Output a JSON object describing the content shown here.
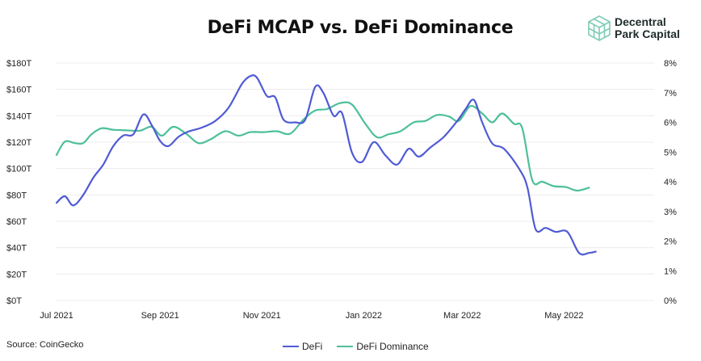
{
  "header": {
    "title": "DeFi MCAP vs. DeFi Dominance",
    "brand_line1": "Decentral",
    "brand_line2": "Park Capital",
    "brand_icon": "cube-logo-icon"
  },
  "footer": {
    "source": "Source: CoinGecko"
  },
  "colors": {
    "defi": "#4F5BD5",
    "dominance": "#4DBF9B",
    "grid": "#ECECEC",
    "logo": "#7FCBB5"
  },
  "chart_data": {
    "type": "line",
    "title": "DeFi MCAP vs. DeFi Dominance",
    "xlabel": "",
    "ylabel": "",
    "x_range": [
      "2021-07-01",
      "2022-06-24"
    ],
    "x_ticks": [
      {
        "date": "2021-07-01",
        "label": "Jul 2021"
      },
      {
        "date": "2021-09-01",
        "label": "Sep 2021"
      },
      {
        "date": "2021-11-01",
        "label": "Nov 2021"
      },
      {
        "date": "2022-01-01",
        "label": "Jan 2022"
      },
      {
        "date": "2022-03-01",
        "label": "Mar 2022"
      },
      {
        "date": "2022-05-01",
        "label": "May 2022"
      }
    ],
    "y_left": {
      "min": 0,
      "max": 180,
      "ticks": [
        "$0T",
        "$20T",
        "$40T",
        "$60T",
        "$80T",
        "$100T",
        "$120T",
        "$140T",
        "$160T",
        "$180T"
      ]
    },
    "y_right": {
      "min": 0,
      "max": 8,
      "ticks": [
        "0%",
        "1%",
        "2%",
        "3%",
        "4%",
        "5%",
        "6%",
        "7%",
        "8%"
      ]
    },
    "grid": true,
    "legend_position": "bottom",
    "series": [
      {
        "name": "DeFi",
        "axis": "left",
        "points": [
          [
            "2021-07-01",
            74
          ],
          [
            "2021-07-06",
            79
          ],
          [
            "2021-07-11",
            72
          ],
          [
            "2021-07-17",
            80
          ],
          [
            "2021-07-23",
            93
          ],
          [
            "2021-07-29",
            103
          ],
          [
            "2021-08-04",
            117
          ],
          [
            "2021-08-10",
            125
          ],
          [
            "2021-08-16",
            126
          ],
          [
            "2021-08-22",
            141
          ],
          [
            "2021-08-27",
            133
          ],
          [
            "2021-09-01",
            121
          ],
          [
            "2021-09-06",
            117
          ],
          [
            "2021-09-12",
            124
          ],
          [
            "2021-09-18",
            128
          ],
          [
            "2021-09-26",
            131
          ],
          [
            "2021-10-04",
            136
          ],
          [
            "2021-10-12",
            146
          ],
          [
            "2021-10-20",
            164
          ],
          [
            "2021-10-25",
            170
          ],
          [
            "2021-10-29",
            169
          ],
          [
            "2021-11-04",
            155
          ],
          [
            "2021-11-09",
            154
          ],
          [
            "2021-11-14",
            137
          ],
          [
            "2021-11-21",
            135
          ],
          [
            "2021-11-27",
            137
          ],
          [
            "2021-12-03",
            162
          ],
          [
            "2021-12-08",
            157
          ],
          [
            "2021-12-14",
            140
          ],
          [
            "2021-12-19",
            142
          ],
          [
            "2021-12-25",
            112
          ],
          [
            "2021-12-31",
            105
          ],
          [
            "2022-01-07",
            120
          ],
          [
            "2022-01-14",
            110
          ],
          [
            "2022-01-21",
            103
          ],
          [
            "2022-01-28",
            115
          ],
          [
            "2022-02-03",
            109
          ],
          [
            "2022-02-10",
            116
          ],
          [
            "2022-02-18",
            124
          ],
          [
            "2022-02-26",
            136
          ],
          [
            "2022-03-03",
            145
          ],
          [
            "2022-03-08",
            152
          ],
          [
            "2022-03-13",
            135
          ],
          [
            "2022-03-19",
            119
          ],
          [
            "2022-03-26",
            115
          ],
          [
            "2022-04-04",
            100
          ],
          [
            "2022-04-09",
            86
          ],
          [
            "2022-04-14",
            54
          ],
          [
            "2022-04-20",
            55
          ],
          [
            "2022-04-26",
            52
          ],
          [
            "2022-05-03",
            52
          ],
          [
            "2022-05-10",
            36
          ],
          [
            "2022-05-16",
            36
          ],
          [
            "2022-05-20",
            37
          ]
        ]
      },
      {
        "name": "DeFi Dominance",
        "axis": "right",
        "points": [
          [
            "2021-07-01",
            4.9
          ],
          [
            "2021-07-06",
            5.35
          ],
          [
            "2021-07-12",
            5.3
          ],
          [
            "2021-07-17",
            5.3
          ],
          [
            "2021-07-22",
            5.6
          ],
          [
            "2021-07-28",
            5.8
          ],
          [
            "2021-08-04",
            5.75
          ],
          [
            "2021-08-12",
            5.73
          ],
          [
            "2021-08-20",
            5.72
          ],
          [
            "2021-08-27",
            5.85
          ],
          [
            "2021-09-02",
            5.55
          ],
          [
            "2021-09-09",
            5.85
          ],
          [
            "2021-09-17",
            5.6
          ],
          [
            "2021-09-24",
            5.3
          ],
          [
            "2021-10-01",
            5.42
          ],
          [
            "2021-10-10",
            5.7
          ],
          [
            "2021-10-18",
            5.55
          ],
          [
            "2021-10-25",
            5.67
          ],
          [
            "2021-11-02",
            5.67
          ],
          [
            "2021-11-10",
            5.7
          ],
          [
            "2021-11-18",
            5.62
          ],
          [
            "2021-11-26",
            6.1
          ],
          [
            "2021-12-03",
            6.4
          ],
          [
            "2021-12-10",
            6.45
          ],
          [
            "2021-12-18",
            6.65
          ],
          [
            "2021-12-25",
            6.6
          ],
          [
            "2022-01-02",
            5.95
          ],
          [
            "2022-01-09",
            5.5
          ],
          [
            "2022-01-16",
            5.6
          ],
          [
            "2022-01-23",
            5.7
          ],
          [
            "2022-01-31",
            6.0
          ],
          [
            "2022-02-07",
            6.05
          ],
          [
            "2022-02-14",
            6.25
          ],
          [
            "2022-02-21",
            6.2
          ],
          [
            "2022-02-27",
            6.05
          ],
          [
            "2022-03-06",
            6.55
          ],
          [
            "2022-03-13",
            6.3
          ],
          [
            "2022-03-19",
            6.0
          ],
          [
            "2022-03-25",
            6.3
          ],
          [
            "2022-04-01",
            5.95
          ],
          [
            "2022-04-06",
            5.8
          ],
          [
            "2022-04-12",
            4.05
          ],
          [
            "2022-04-18",
            4.0
          ],
          [
            "2022-04-25",
            3.85
          ],
          [
            "2022-05-02",
            3.82
          ],
          [
            "2022-05-09",
            3.7
          ],
          [
            "2022-05-16",
            3.8
          ]
        ]
      }
    ]
  }
}
